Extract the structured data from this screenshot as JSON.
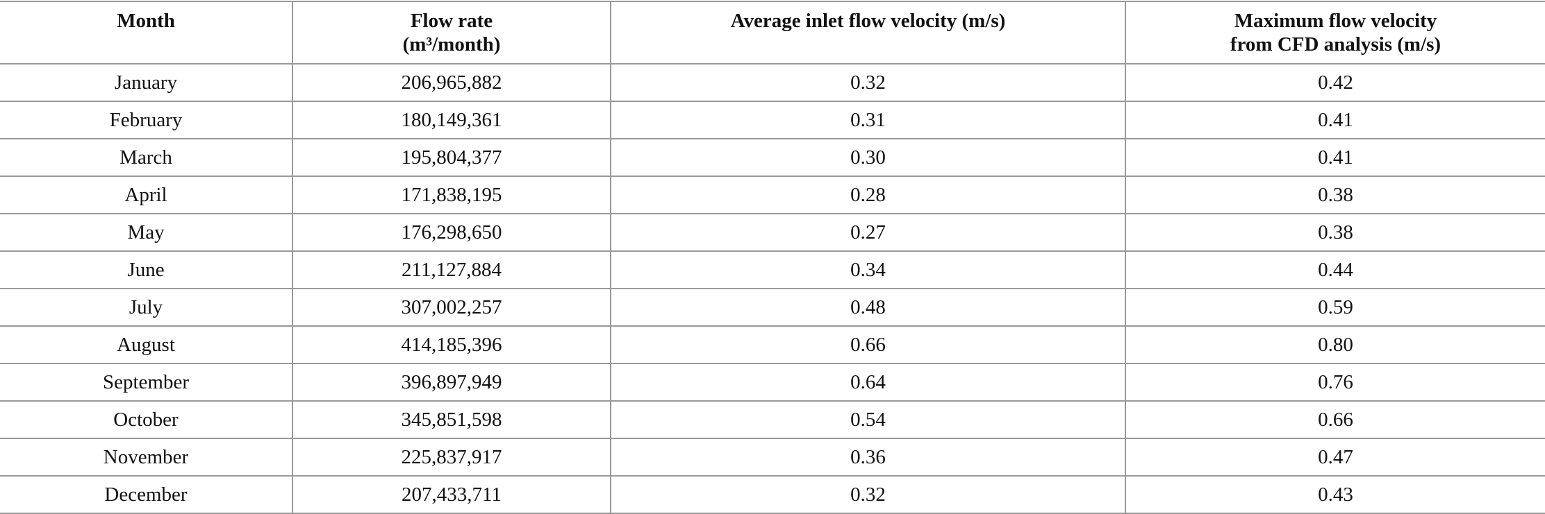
{
  "table": {
    "header": [
      [
        "Month"
      ],
      [
        "Flow rate",
        "(m³/month)"
      ],
      [
        "Average inlet flow velocity (m/s)"
      ],
      [
        "Maximum flow velocity",
        "from CFD analysis (m/s)"
      ]
    ],
    "rows": [
      [
        "January",
        "206,965,882",
        "0.32",
        "0.42"
      ],
      [
        "February",
        "180,149,361",
        "0.31",
        "0.41"
      ],
      [
        "March",
        "195,804,377",
        "0.30",
        "0.41"
      ],
      [
        "April",
        "171,838,195",
        "0.28",
        "0.38"
      ],
      [
        "May",
        "176,298,650",
        "0.27",
        "0.38"
      ],
      [
        "June",
        "211,127,884",
        "0.34",
        "0.44"
      ],
      [
        "July",
        "307,002,257",
        "0.48",
        "0.59"
      ],
      [
        "August",
        "414,185,396",
        "0.66",
        "0.80"
      ],
      [
        "September",
        "396,897,949",
        "0.64",
        "0.76"
      ],
      [
        "October",
        "345,851,598",
        "0.54",
        "0.66"
      ],
      [
        "November",
        "225,837,917",
        "0.36",
        "0.47"
      ],
      [
        "December",
        "207,433,711",
        "0.32",
        "0.43"
      ]
    ]
  }
}
